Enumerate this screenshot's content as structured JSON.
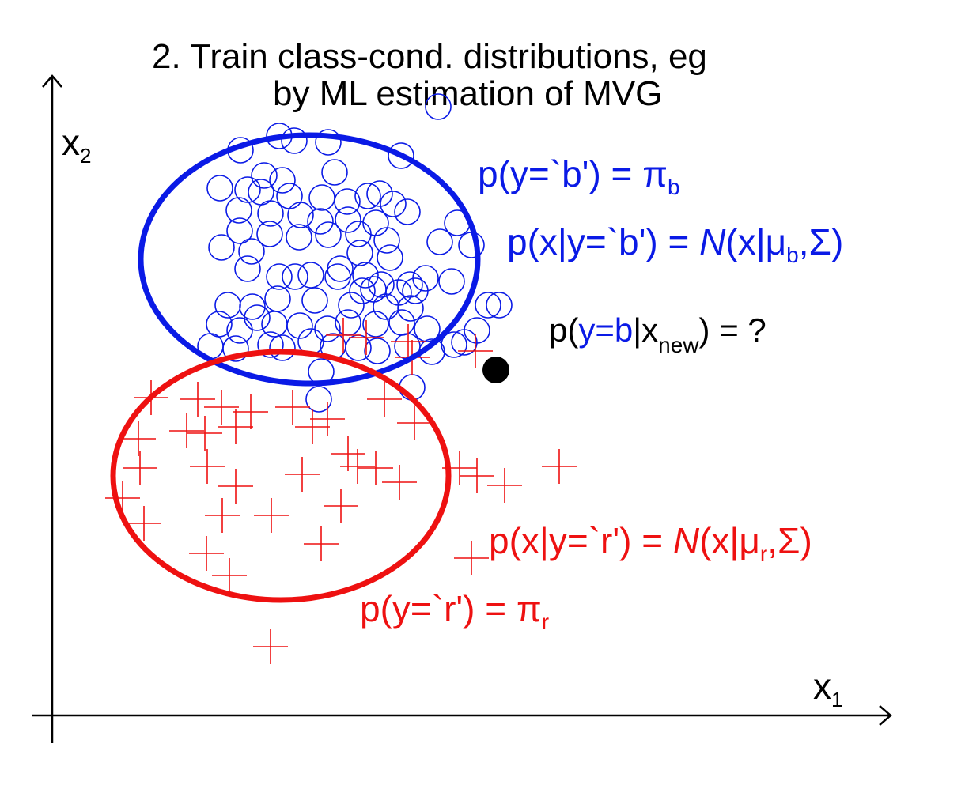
{
  "title": {
    "line1": "2. Train class-cond. distributions, eg",
    "line2": "by ML estimation of MVG"
  },
  "axes": {
    "x_label": "x",
    "x_sub": "1",
    "y_label": "x",
    "y_sub": "2"
  },
  "colors": {
    "blue": "#0a1ae6",
    "red": "#ee1111",
    "black": "#000000"
  },
  "blue_class": {
    "prior": {
      "lhs": "p(y=`b') = ",
      "pi": "π",
      "sub": "b"
    },
    "likelihood": {
      "lhs": "p(x|y=`b') = ",
      "N": "N",
      "open": "(x|",
      "mu": "μ",
      "sub": "b",
      "rest": ",Σ)"
    }
  },
  "red_class": {
    "prior": {
      "lhs": "p(y=`r') = ",
      "pi": "π",
      "sub": "r"
    },
    "likelihood": {
      "lhs": "p(x|y=`r') = ",
      "N": "N",
      "open": "(x|",
      "mu": "μ",
      "sub": "r",
      "rest": ",Σ)"
    }
  },
  "query": {
    "p_open": "p(",
    "y_eq_b": "y=b",
    "bar_x": "|x",
    "sub": "new",
    "close": ") = ?"
  },
  "legend_marker_names": {
    "blue": "circle (class b)",
    "red": "plus (class r)",
    "new_point": "filled dot (x_new)"
  }
}
